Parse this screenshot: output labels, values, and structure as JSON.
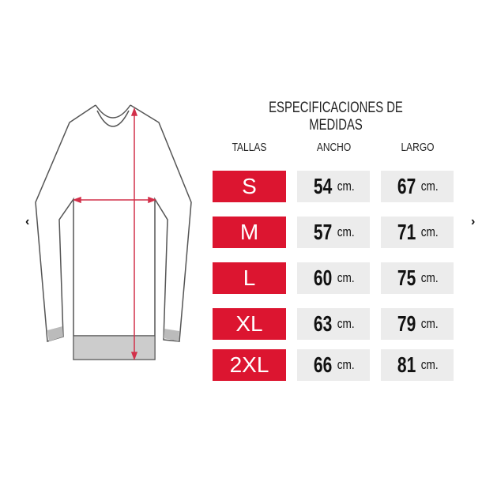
{
  "nav": {
    "prev_icon": "chevron-left-icon",
    "next_icon": "chevron-right-icon",
    "prev": "‹",
    "next": "›"
  },
  "chart": {
    "title": "ESPECIFICACIONES DE MEDIDAS",
    "headers": [
      "TALLAS",
      "ANCHO",
      "LARGO"
    ],
    "unit": "cm.",
    "rows": [
      {
        "size": "S",
        "ancho": "54",
        "largo": "67"
      },
      {
        "size": "M",
        "ancho": "57",
        "largo": "71"
      },
      {
        "size": "L",
        "ancho": "60",
        "largo": "75"
      },
      {
        "size": "XL",
        "ancho": "63",
        "largo": "79"
      },
      {
        "size": "2XL",
        "ancho": "66",
        "largo": "81"
      }
    ]
  },
  "colors": {
    "size_bg": "#dc1530",
    "value_bg": "#ececec",
    "measure_line": "#e05060"
  }
}
